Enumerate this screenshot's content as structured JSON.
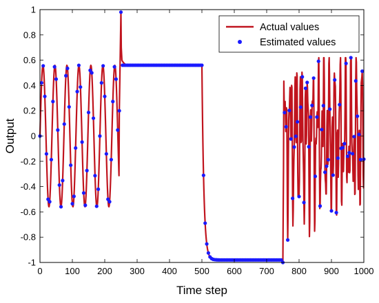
{
  "chart_data": {
    "type": "line",
    "title": "",
    "xlabel": "Time step",
    "ylabel": "Output",
    "xlim": [
      0,
      1000
    ],
    "ylim": [
      -1,
      1
    ],
    "x_ticks": [
      0,
      100,
      200,
      300,
      400,
      500,
      600,
      700,
      800,
      900,
      1000
    ],
    "y_ticks": [
      -1,
      -0.8,
      -0.6,
      -0.4,
      -0.2,
      0,
      0.2,
      0.4,
      0.6,
      0.8,
      1
    ],
    "x_tick_labels": [
      "0",
      "100",
      "200",
      "300",
      "400",
      "500",
      "600",
      "700",
      "800",
      "900",
      "1000"
    ],
    "y_tick_labels": [
      "-1",
      "-0.8",
      "-0.6",
      "-0.4",
      "-0.2",
      "0",
      "0.2",
      "0.4",
      "0.6",
      "0.8",
      "1"
    ],
    "grid": false,
    "legend_position": "top-right",
    "series": [
      {
        "name": "Actual values",
        "style": "line",
        "color": "#c0141e",
        "segments": [
          {
            "kind": "sine",
            "x_start": 0,
            "x_end": 250,
            "amplitude": 0.56,
            "period": 37,
            "offset": 0
          },
          {
            "kind": "points",
            "x": [
              245,
              250,
              251,
              253,
              255,
              258,
              262
            ],
            "y": [
              0.2,
              0.98,
              0.7,
              0.6,
              0.59,
              0.58,
              0.57
            ]
          },
          {
            "kind": "constant",
            "x_start": 262,
            "x_end": 500,
            "value": 0.56
          },
          {
            "kind": "decay",
            "x_start": 500,
            "x_end": 750,
            "from": 0.56,
            "to": -0.98,
            "tau": 6
          },
          {
            "kind": "points",
            "x": [
              748,
              749,
              750,
              751,
              752
            ],
            "y": [
              -1.0,
              -1.0,
              -1.0,
              -0.6,
              -0.25
            ]
          },
          {
            "kind": "multisine",
            "x_start": 752,
            "x_end": 1000,
            "components": [
              [
                0.3,
                17
              ],
              [
                0.22,
                8.3
              ],
              [
                0.15,
                5.2
              ]
            ],
            "scale": 1.25
          }
        ]
      },
      {
        "name": "Estimated values",
        "style": "markers",
        "color": "#1a1aff",
        "sample_step": 5
      }
    ]
  }
}
